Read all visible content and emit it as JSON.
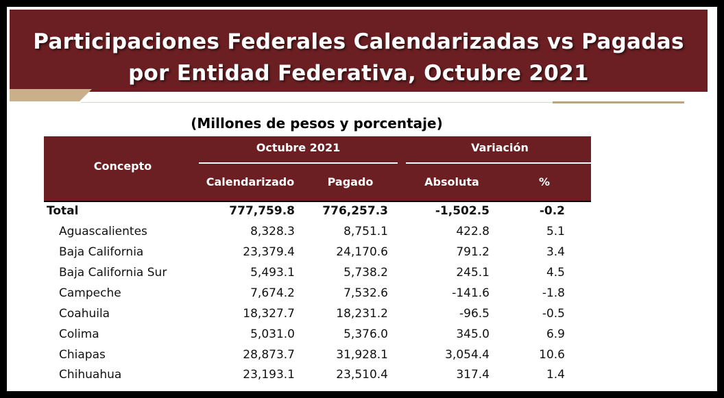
{
  "banner": {
    "title_line1": "Participaciones Federales Calendarizadas vs Pagadas",
    "title_line2": "por Entidad Federativa, Octubre 2021"
  },
  "subtitle": "(Millones de pesos y porcentaje)",
  "table": {
    "headers": {
      "concepto": "Concepto",
      "group_period": "Octubre 2021",
      "group_variation": "Variación",
      "calendarizado": "Calendarizado",
      "pagado": "Pagado",
      "absoluta": "Absoluta",
      "pct": "%"
    },
    "rows": [
      {
        "name": "Total",
        "cal": "777,759.8",
        "pag": "776,257.3",
        "abs": "-1,502.5",
        "pct": "-0.2"
      },
      {
        "name": "Aguascalientes",
        "cal": "8,328.3",
        "pag": "8,751.1",
        "abs": "422.8",
        "pct": "5.1"
      },
      {
        "name": "Baja California",
        "cal": "23,379.4",
        "pag": "24,170.6",
        "abs": "791.2",
        "pct": "3.4"
      },
      {
        "name": "Baja California Sur",
        "cal": "5,493.1",
        "pag": "5,738.2",
        "abs": "245.1",
        "pct": "4.5"
      },
      {
        "name": "Campeche",
        "cal": "7,674.2",
        "pag": "7,532.6",
        "abs": "-141.6",
        "pct": "-1.8"
      },
      {
        "name": "Coahuila",
        "cal": "18,327.7",
        "pag": "18,231.2",
        "abs": "-96.5",
        "pct": "-0.5"
      },
      {
        "name": "Colima",
        "cal": "5,031.0",
        "pag": "5,376.0",
        "abs": "345.0",
        "pct": "6.9"
      },
      {
        "name": "Chiapas",
        "cal": "28,873.7",
        "pag": "31,928.1",
        "abs": "3,054.4",
        "pct": "10.6"
      },
      {
        "name": "Chihuahua",
        "cal": "23,193.1",
        "pag": "23,510.4",
        "abs": "317.4",
        "pct": "1.4"
      }
    ]
  },
  "colors": {
    "banner": "#6b1f22",
    "header": "#6b1f22",
    "accent_gold": "#c9b08a",
    "frame": "#000000"
  }
}
